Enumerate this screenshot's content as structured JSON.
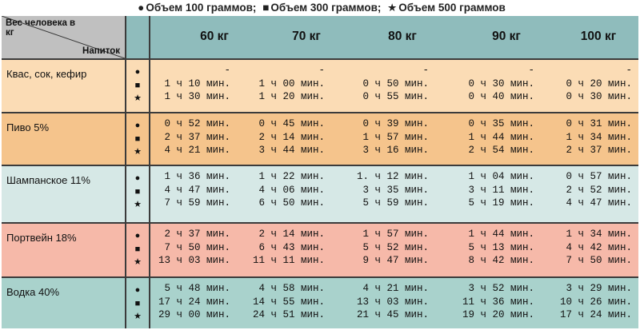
{
  "legend": {
    "item1_symbol": "●",
    "item1_text": "Объем 100 граммов;",
    "item2_symbol": "■",
    "item2_text": "Объем 300 граммов;",
    "item3_symbol": "★",
    "item3_text": "Объем 500 граммов"
  },
  "header": {
    "corner_top": "Вес человека в кг",
    "corner_bottom": "Напиток",
    "weights": [
      "60 кг",
      "70 кг",
      "80 кг",
      "90 кг",
      "100 кг"
    ]
  },
  "symbols": [
    "●",
    "■",
    "★"
  ],
  "rows": [
    {
      "drink": "Квас, сок, кефир",
      "values": [
        [
          "-",
          "1 ч 10 мин.",
          "1 ч 30 мин."
        ],
        [
          "-",
          "1 ч 00 мин.",
          "1 ч 20 мин."
        ],
        [
          "-",
          "0 ч 50 мин.",
          "0 ч 55 мин."
        ],
        [
          "-",
          "0 ч 30 мин.",
          "0 ч 40 мин."
        ],
        [
          "-",
          "0 ч 20 мин.",
          "0 ч 30 мин."
        ]
      ]
    },
    {
      "drink": "Пиво 5%",
      "values": [
        [
          "0 ч 52 мин.",
          "2 ч 37 мин.",
          "4 ч 21 мин."
        ],
        [
          "0 ч 45 мин.",
          "2 ч 14 мин.",
          "3 ч 44 мин."
        ],
        [
          "0 ч 39 мин.",
          "1 ч 57 мин.",
          "3 ч 16 мин."
        ],
        [
          "0 ч 35 мин.",
          "1 ч 44 мин.",
          "2 ч 54 мин."
        ],
        [
          "0 ч 31 мин.",
          "1 ч 34 мин.",
          "2 ч 37 мин."
        ]
      ]
    },
    {
      "drink": "Шампанское 11%",
      "values": [
        [
          "1 ч 36 мин.",
          "4 ч 47 мин.",
          "7 ч 59 мин."
        ],
        [
          "1 ч 22 мин.",
          "4 ч 06 мин.",
          "6 ч 50 мин."
        ],
        [
          "1. ч 12 мин.",
          "3 ч 35 мин.",
          "5 ч 59 мин."
        ],
        [
          "1 ч 04 мин.",
          "3 ч 11 мин.",
          "5 ч 19 мин."
        ],
        [
          "0 ч 57 мин.",
          "2 ч 52 мин.",
          "4 ч 47 мин."
        ]
      ]
    },
    {
      "drink": "Портвейн 18%",
      "values": [
        [
          "2 ч 37 мин.",
          "7 ч 50 мин.",
          "13 ч 03 мин."
        ],
        [
          "2 ч 14 мин.",
          "6 ч 43 мин.",
          "11 ч 11 мин."
        ],
        [
          "1 ч 57 мин.",
          "5 ч 52 мин.",
          "9 ч 47 мин."
        ],
        [
          "1 ч 44 мин.",
          "5 ч 13 мин.",
          "8 ч 42 мин."
        ],
        [
          "1 ч 34 мин.",
          "4 ч 42 мин.",
          "7 ч 50 мин."
        ]
      ]
    },
    {
      "drink": "Водка 40%",
      "values": [
        [
          "5 ч 48 мин.",
          "17 ч 24 мин.",
          "29 ч 00 мин."
        ],
        [
          "4 ч 58 мин.",
          "14 ч 55 мин.",
          "24 ч 51 мин."
        ],
        [
          "4 ч 21 мин.",
          "13 ч 03 мин.",
          "21 ч 45 мин."
        ],
        [
          "3 ч 52 мин.",
          "11 ч 36 мин.",
          "19 ч 20 мин."
        ],
        [
          "3 ч 29 мин.",
          "10 ч 26 мин.",
          "17 ч 24 мин."
        ]
      ]
    }
  ]
}
